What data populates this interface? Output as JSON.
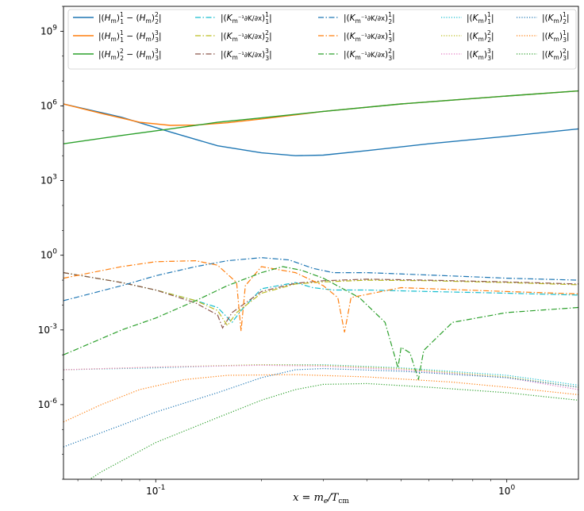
{
  "chart_data": {
    "type": "line",
    "title": "",
    "xlabel": "x = m_e/T_cm",
    "ylabel": "",
    "x_scale": "log",
    "y_scale": "log",
    "xlim": [
      0.0546,
      1.6
    ],
    "ylim": [
      1e-09,
      10000000000.0
    ],
    "x_ticks": [
      {
        "value": 0.1,
        "label": "10^-1"
      },
      {
        "value": 1,
        "label": "10^0"
      }
    ],
    "y_ticks": [
      {
        "value": 1e-06,
        "label": "10^-6"
      },
      {
        "value": 0.001,
        "label": "10^-3"
      },
      {
        "value": 1,
        "label": "10^0"
      },
      {
        "value": 1000.0,
        "label": "10^3"
      },
      {
        "value": 1000000.0,
        "label": "10^6"
      },
      {
        "value": 1000000000.0,
        "label": "10^9"
      }
    ],
    "legend_position": "top",
    "grid": false,
    "series": [
      {
        "name": "|(H_m)^1_1 − (H_m)^2_2|",
        "legend": [
          "|(",
          "H",
          "m",
          ")",
          "1",
          "1",
          " − (",
          "H",
          "m",
          ")",
          "2",
          "2",
          "|"
        ],
        "color": "#1f77b4",
        "style": "solid",
        "points": [
          [
            0.0546,
            1200000.0
          ],
          [
            0.08,
            350000.0
          ],
          [
            0.11,
            90000.0
          ],
          [
            0.15,
            25000.0
          ],
          [
            0.2,
            13000.0
          ],
          [
            0.25,
            10000.0
          ],
          [
            0.3,
            10500.0
          ],
          [
            0.4,
            16000.0
          ],
          [
            0.6,
            30000.0
          ],
          [
            1.0,
            60000.0
          ],
          [
            1.6,
            120000.0
          ]
        ]
      },
      {
        "name": "|(H_m)^1_1 − (H_m)^3_3|",
        "legend": [
          "|(",
          "H",
          "m",
          ")",
          "1",
          "1",
          " − (",
          "H",
          "m",
          ")",
          "3",
          "3",
          "|"
        ],
        "color": "#ff7f0e",
        "style": "solid",
        "points": [
          [
            0.0546,
            1200000.0
          ],
          [
            0.07,
            500000.0
          ],
          [
            0.09,
            220000.0
          ],
          [
            0.11,
            165000.0
          ],
          [
            0.13,
            170000.0
          ],
          [
            0.16,
            210000.0
          ],
          [
            0.2,
            300000.0
          ],
          [
            0.3,
            600000.0
          ],
          [
            0.5,
            1200000.0
          ],
          [
            1.0,
            2500000.0
          ],
          [
            1.6,
            4000000.0
          ]
        ]
      },
      {
        "name": "|(H_m)^2_2 − (H_m)^3_3|",
        "legend": [
          "|(",
          "H",
          "m",
          ")",
          "2",
          "2",
          " − (",
          "H",
          "m",
          ")",
          "3",
          "3",
          "|"
        ],
        "color": "#2ca02c",
        "style": "solid",
        "points": [
          [
            0.0546,
            30000.0
          ],
          [
            0.08,
            65000.0
          ],
          [
            0.11,
            120000.0
          ],
          [
            0.15,
            220000.0
          ],
          [
            0.2,
            330000.0
          ],
          [
            0.3,
            600000.0
          ],
          [
            0.5,
            1200000.0
          ],
          [
            1.0,
            2500000.0
          ],
          [
            1.6,
            4000000.0
          ]
        ]
      },
      {
        "name": "|(K_m^-1 ∂K_m/∂x)^1_1|",
        "legend": [
          "|(",
          "K",
          "m",
          "⁻¹∂K/∂x",
          ")",
          "1",
          "1",
          "|"
        ],
        "color": "#17becf",
        "style": "dashdot",
        "points": [
          [
            0.0546,
            0.2
          ],
          [
            0.08,
            0.08
          ],
          [
            0.1,
            0.04
          ],
          [
            0.13,
            0.015
          ],
          [
            0.15,
            0.008
          ],
          [
            0.165,
            0.002
          ],
          [
            0.175,
            0.006
          ],
          [
            0.2,
            0.045
          ],
          [
            0.25,
            0.08
          ],
          [
            0.28,
            0.05
          ],
          [
            0.32,
            0.04
          ],
          [
            0.4,
            0.04
          ],
          [
            0.6,
            0.035
          ],
          [
            1.0,
            0.03
          ],
          [
            1.6,
            0.025
          ]
        ]
      },
      {
        "name": "|(K_m^-1 ∂K_m/∂x)^2_2|",
        "legend": [
          "|(",
          "K",
          "m",
          "⁻¹∂K/∂x",
          ")",
          "2",
          "2",
          "|"
        ],
        "color": "#bcbd22",
        "style": "dashdot",
        "points": [
          [
            0.0546,
            0.2
          ],
          [
            0.08,
            0.08
          ],
          [
            0.1,
            0.04
          ],
          [
            0.13,
            0.015
          ],
          [
            0.15,
            0.006
          ],
          [
            0.16,
            0.0015
          ],
          [
            0.17,
            0.005
          ],
          [
            0.2,
            0.03
          ],
          [
            0.25,
            0.07
          ],
          [
            0.3,
            0.085
          ],
          [
            0.4,
            0.1
          ],
          [
            0.6,
            0.095
          ],
          [
            1.0,
            0.08
          ],
          [
            1.6,
            0.065
          ]
        ]
      },
      {
        "name": "|(K_m^-1 ∂K_m/∂x)^3_3|",
        "legend": [
          "|(",
          "K",
          "m",
          "⁻¹∂K/∂x",
          ")",
          "3",
          "3",
          "|"
        ],
        "color": "#8c564b",
        "style": "dashdot",
        "points": [
          [
            0.0546,
            0.2
          ],
          [
            0.08,
            0.08
          ],
          [
            0.1,
            0.04
          ],
          [
            0.13,
            0.012
          ],
          [
            0.15,
            0.004
          ],
          [
            0.155,
            0.0012
          ],
          [
            0.165,
            0.005
          ],
          [
            0.2,
            0.035
          ],
          [
            0.25,
            0.075
          ],
          [
            0.3,
            0.095
          ],
          [
            0.4,
            0.11
          ],
          [
            0.6,
            0.1
          ],
          [
            1.0,
            0.085
          ],
          [
            1.6,
            0.07
          ]
        ]
      },
      {
        "name": "|(K_m^-1 ∂K_m/∂x)^1_2|",
        "legend": [
          "|(",
          "K",
          "m",
          "⁻¹∂K/∂x",
          ")",
          "1",
          "2",
          "|"
        ],
        "color": "#1f77b4",
        "style": "dashdot",
        "points": [
          [
            0.0546,
            0.015
          ],
          [
            0.08,
            0.06
          ],
          [
            0.1,
            0.15
          ],
          [
            0.13,
            0.35
          ],
          [
            0.16,
            0.6
          ],
          [
            0.2,
            0.8
          ],
          [
            0.24,
            0.65
          ],
          [
            0.28,
            0.3
          ],
          [
            0.32,
            0.2
          ],
          [
            0.4,
            0.2
          ],
          [
            0.6,
            0.16
          ],
          [
            1.0,
            0.12
          ],
          [
            1.6,
            0.1
          ]
        ]
      },
      {
        "name": "|(K_m^-1 ∂K_m/∂x)^1_3|",
        "legend": [
          "|(",
          "K",
          "m",
          "⁻¹∂K/∂x",
          ")",
          "1",
          "3",
          "|"
        ],
        "color": "#ff7f0e",
        "style": "dashdot",
        "points": [
          [
            0.0546,
            0.12
          ],
          [
            0.08,
            0.35
          ],
          [
            0.1,
            0.55
          ],
          [
            0.13,
            0.6
          ],
          [
            0.15,
            0.4
          ],
          [
            0.17,
            0.08
          ],
          [
            0.175,
            0.0009
          ],
          [
            0.18,
            0.06
          ],
          [
            0.2,
            0.35
          ],
          [
            0.25,
            0.2
          ],
          [
            0.3,
            0.06
          ],
          [
            0.33,
            0.02
          ],
          [
            0.345,
            0.0008
          ],
          [
            0.36,
            0.02
          ],
          [
            0.5,
            0.05
          ],
          [
            1.0,
            0.035
          ],
          [
            1.6,
            0.028
          ]
        ]
      },
      {
        "name": "|(K_m^-1 ∂K_m/∂x)^2_3|",
        "legend": [
          "|(",
          "K",
          "m",
          "⁻¹∂K/∂x",
          ")",
          "2",
          "3",
          "|"
        ],
        "color": "#2ca02c",
        "style": "dashdot",
        "points": [
          [
            0.0546,
            0.0001
          ],
          [
            0.08,
            0.001
          ],
          [
            0.1,
            0.003
          ],
          [
            0.13,
            0.015
          ],
          [
            0.16,
            0.06
          ],
          [
            0.2,
            0.2
          ],
          [
            0.23,
            0.35
          ],
          [
            0.26,
            0.25
          ],
          [
            0.3,
            0.12
          ],
          [
            0.38,
            0.02
          ],
          [
            0.45,
            0.002
          ],
          [
            0.49,
            3e-05
          ],
          [
            0.5,
            0.0002
          ],
          [
            0.53,
            0.00012
          ],
          [
            0.56,
            1e-05
          ],
          [
            0.58,
            0.00015
          ],
          [
            0.7,
            0.002
          ],
          [
            1.0,
            0.005
          ],
          [
            1.6,
            0.008
          ]
        ]
      },
      {
        "name": "|(K_m)^1_1|",
        "legend": [
          "|(",
          "K",
          "m",
          ")",
          "1",
          "1",
          "|"
        ],
        "color": "#17becf",
        "style": "dotted",
        "points": [
          [
            0.0546,
            2.5e-05
          ],
          [
            0.1,
            3e-05
          ],
          [
            0.2,
            4e-05
          ],
          [
            0.3,
            4e-05
          ],
          [
            0.5,
            3e-05
          ],
          [
            1.0,
            1.5e-05
          ],
          [
            1.6,
            6e-06
          ]
        ]
      },
      {
        "name": "|(K_m)^2_2|",
        "legend": [
          "|(",
          "K",
          "m",
          ")",
          "2",
          "2",
          "|"
        ],
        "color": "#bcbd22",
        "style": "dotted",
        "points": [
          [
            0.0546,
            2.5e-05
          ],
          [
            0.1,
            3.2e-05
          ],
          [
            0.2,
            4e-05
          ],
          [
            0.3,
            3.8e-05
          ],
          [
            0.5,
            2.8e-05
          ],
          [
            1.0,
            1.3e-05
          ],
          [
            1.6,
            5e-06
          ]
        ]
      },
      {
        "name": "|(K_m)^3_3|",
        "legend": [
          "|(",
          "K",
          "m",
          ")",
          "3",
          "3",
          "|"
        ],
        "color": "#e377c2",
        "style": "dotted",
        "points": [
          [
            0.0546,
            2.5e-05
          ],
          [
            0.1,
            3.2e-05
          ],
          [
            0.2,
            3.8e-05
          ],
          [
            0.3,
            3.5e-05
          ],
          [
            0.5,
            2.5e-05
          ],
          [
            1.0,
            1.2e-05
          ],
          [
            1.6,
            4e-06
          ]
        ]
      },
      {
        "name": "|(K_m)^1_2|",
        "legend": [
          "|(",
          "K",
          "m",
          ")",
          "1",
          "2",
          "|"
        ],
        "color": "#1f77b4",
        "style": "dotted",
        "points": [
          [
            0.0546,
            2e-08
          ],
          [
            0.08,
            1.5e-07
          ],
          [
            0.1,
            5e-07
          ],
          [
            0.15,
            3e-06
          ],
          [
            0.2,
            1.2e-05
          ],
          [
            0.25,
            2.5e-05
          ],
          [
            0.3,
            2.8e-05
          ],
          [
            0.5,
            2.2e-05
          ],
          [
            1.0,
            1.2e-05
          ],
          [
            1.6,
            5e-06
          ]
        ]
      },
      {
        "name": "|(K_m)^1_3|",
        "legend": [
          "|(",
          "K",
          "m",
          ")",
          "1",
          "3",
          "|"
        ],
        "color": "#ff7f0e",
        "style": "dotted",
        "points": [
          [
            0.0546,
            2e-07
          ],
          [
            0.07,
            1e-06
          ],
          [
            0.09,
            4e-06
          ],
          [
            0.12,
            1e-05
          ],
          [
            0.16,
            1.5e-05
          ],
          [
            0.25,
            1.6e-05
          ],
          [
            0.4,
            1.3e-05
          ],
          [
            0.7,
            8e-06
          ],
          [
            1.0,
            5e-06
          ],
          [
            1.6,
            2.5e-06
          ]
        ]
      },
      {
        "name": "|(K_m)^2_3|",
        "legend": [
          "|(",
          "K",
          "m",
          ")",
          "2",
          "3",
          "|"
        ],
        "color": "#2ca02c",
        "style": "dotted",
        "points": [
          [
            0.0546,
            2e-10
          ],
          [
            0.07,
            2e-09
          ],
          [
            0.1,
            3e-08
          ],
          [
            0.15,
            3e-07
          ],
          [
            0.2,
            1.5e-06
          ],
          [
            0.25,
            4e-06
          ],
          [
            0.3,
            6.5e-06
          ],
          [
            0.4,
            7e-06
          ],
          [
            0.6,
            5e-06
          ],
          [
            1.0,
            3e-06
          ],
          [
            1.6,
            1.5e-06
          ]
        ]
      }
    ]
  }
}
